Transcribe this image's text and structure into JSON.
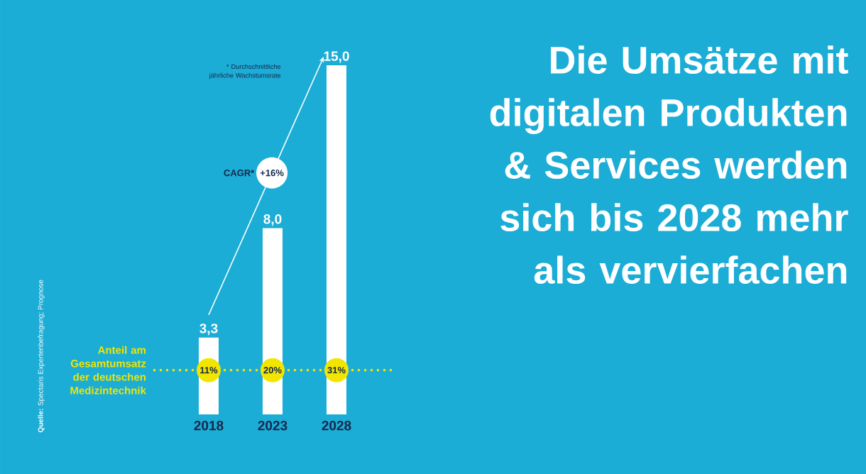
{
  "chart_data": {
    "type": "bar",
    "title": "Die Umsätze mit digitalen Produkten & Services werden sich bis 2028 mehr als vervierfachen",
    "categories": [
      "2018",
      "2023",
      "2028"
    ],
    "values": [
      3.3,
      8.0,
      15.0
    ],
    "color": "#ffffff",
    "value_labels": [
      "3,3",
      "8,0",
      "15,0"
    ],
    "ref_lines": [
      {
        "axis": "y",
        "value": 1.9,
        "label": "Anteil am Gesamtumsatz der deutschen Medizintechnik",
        "color": "#f2e600",
        "line_style": "dotted"
      }
    ],
    "annotations": [
      {
        "text": "11%",
        "x": "2018",
        "y": 1.9
      },
      {
        "text": "20%",
        "x": "2023",
        "y": 1.9
      },
      {
        "text": "31%",
        "x": "2028",
        "y": 1.9
      },
      "CAGR*",
      "+16%",
      "* Durchschnittliche jährliche Wachstumsrate",
      "**Quelle:** Spectaris Expertenbefragung; Prognose"
    ],
    "tick_labels": "x"
  }
}
